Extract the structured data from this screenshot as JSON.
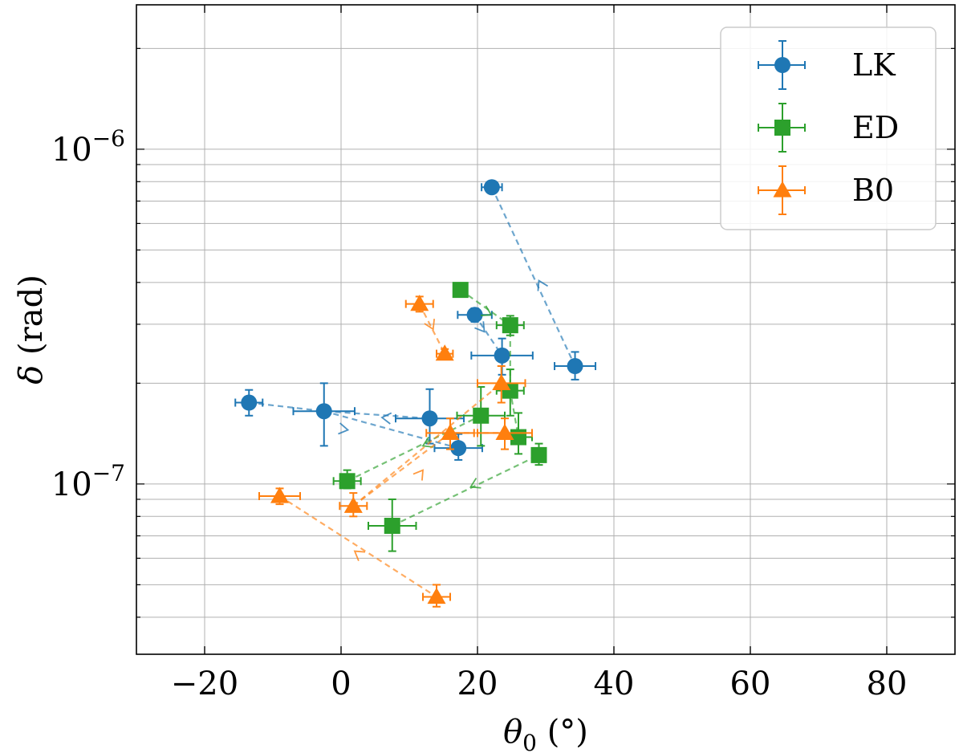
{
  "chart_data": {
    "type": "scatter",
    "title": "",
    "xlabel": {
      "base": "θ",
      "sub": "0",
      "unit": "(°)"
    },
    "ylabel": {
      "var": "δ",
      "unit": "(rad)"
    },
    "xlim": [
      -30,
      90
    ],
    "ylim": [
      3.1e-08,
      2.7e-06
    ],
    "yscale": "log",
    "grid": true,
    "legend_position": "top-right",
    "x_ticks": [
      -20,
      0,
      20,
      40,
      60,
      80
    ],
    "x_tick_labels": [
      "−20",
      "0",
      "20",
      "40",
      "60",
      "80"
    ],
    "y_tick_labels": [
      {
        "value": 1e-07,
        "base": "10",
        "exp": "−7"
      },
      {
        "value": 1e-06,
        "base": "10",
        "exp": "−6"
      }
    ],
    "series": [
      {
        "name": "LK",
        "color": "#1f77b4",
        "marker": "circle",
        "points": [
          {
            "x": 22.1,
            "y": 7.7e-07,
            "xerr": 1.5,
            "yerr": [
              1.5e-08,
              1.5e-08
            ]
          },
          {
            "x": 34.3,
            "y": 2.25e-07,
            "xerr": 3.0,
            "yerr": [
              2e-08,
              2.3e-08
            ]
          },
          {
            "x": 19.6,
            "y": 3.2e-07,
            "xerr": 2.5,
            "yerr": [
              1.5e-08,
              1.5e-08
            ]
          },
          {
            "x": 23.6,
            "y": 2.42e-07,
            "xerr": 4.5,
            "yerr": [
              3e-08,
              3e-08
            ]
          },
          {
            "x": -13.5,
            "y": 1.75e-07,
            "xerr": 2.0,
            "yerr": [
              1.5e-08,
              1.6e-08
            ]
          },
          {
            "x": -2.5,
            "y": 1.65e-07,
            "xerr": 4.5,
            "yerr": [
              3.5e-08,
              3.5e-08
            ]
          },
          {
            "x": 13.0,
            "y": 1.57e-07,
            "xerr": 5.0,
            "yerr": [
              2.5e-08,
              3.5e-08
            ]
          },
          {
            "x": 17.2,
            "y": 1.28e-07,
            "xerr": 3.5,
            "yerr": [
              1e-08,
              1.3e-08
            ]
          }
        ],
        "path": [
          [
            22.1,
            7.7e-07
          ],
          [
            34.3,
            2.25e-07
          ]
        ],
        "path2": [
          [
            -13.5,
            1.75e-07
          ],
          [
            -2.5,
            1.65e-07
          ],
          [
            13.0,
            1.57e-07
          ]
        ],
        "path3": [
          [
            -2.5,
            1.65e-07
          ],
          [
            17.2,
            1.28e-07
          ]
        ],
        "path4": [
          [
            19.6,
            3.2e-07
          ],
          [
            23.6,
            2.42e-07
          ]
        ],
        "arrows": [
          {
            "x": 29.0,
            "y": 4.05e-07,
            "to": [
              22.1,
              7.7e-07
            ]
          },
          {
            "x": 6.0,
            "y": 1.58e-07,
            "to": [
              -2.5,
              1.65e-07
            ]
          },
          {
            "x": 1.0,
            "y": 1.45e-07,
            "to": [
              17.2,
              1.28e-07
            ]
          },
          {
            "x": 21.0,
            "y": 2.85e-07,
            "to": [
              23.6,
              2.42e-07
            ]
          }
        ]
      },
      {
        "name": "ED",
        "color": "#2ca02c",
        "marker": "square",
        "points": [
          {
            "x": 17.5,
            "y": 3.8e-07,
            "xerr": 1.0,
            "yerr": [
              1.5e-08,
              1.5e-08
            ]
          },
          {
            "x": 24.8,
            "y": 2.98e-07,
            "xerr": 2.0,
            "yerr": [
              2e-08,
              2e-08
            ]
          },
          {
            "x": 24.8,
            "y": 1.9e-07,
            "xerr": 2.0,
            "yerr": [
              3e-08,
              3e-08
            ]
          },
          {
            "x": 20.5,
            "y": 1.6e-07,
            "xerr": 3.5,
            "yerr": [
              3e-08,
              3.5e-08
            ]
          },
          {
            "x": 26.0,
            "y": 1.38e-07,
            "xerr": 2.0,
            "yerr": [
              1.5e-08,
              2.5e-08
            ]
          },
          {
            "x": 29.0,
            "y": 1.22e-07,
            "xerr": 1.0,
            "yerr": [
              8e-09,
              1e-08
            ]
          },
          {
            "x": 0.9,
            "y": 1.02e-07,
            "xerr": 2.0,
            "yerr": [
              5e-09,
              8e-09
            ]
          },
          {
            "x": 7.5,
            "y": 7.5e-08,
            "xerr": 3.5,
            "yerr": [
              1.2e-08,
              1.5e-08
            ]
          }
        ],
        "path": [
          [
            17.5,
            3.8e-07
          ],
          [
            24.8,
            2.98e-07
          ],
          [
            24.8,
            1.9e-07
          ],
          [
            26.0,
            1.38e-07
          ]
        ],
        "path2": [
          [
            0.9,
            1.02e-07
          ],
          [
            20.5,
            1.6e-07
          ]
        ],
        "path3": [
          [
            7.5,
            7.5e-08
          ],
          [
            29.0,
            1.22e-07
          ]
        ],
        "arrows": [
          {
            "x": 12.0,
            "y": 1.3e-07,
            "to": [
              0.9,
              1.02e-07
            ]
          },
          {
            "x": 19.0,
            "y": 9.8e-08,
            "to": [
              7.5,
              7.5e-08
            ]
          },
          {
            "x": 22.0,
            "y": 3.2e-07,
            "to": [
              24.8,
              2.98e-07
            ]
          }
        ]
      },
      {
        "name": "B0",
        "color": "#ff7f0e",
        "marker": "triangle",
        "points": [
          {
            "x": 11.5,
            "y": 3.45e-07,
            "xerr": 2.0,
            "yerr": [
              1.8e-08,
              1.8e-08
            ]
          },
          {
            "x": 15.2,
            "y": 2.45e-07,
            "xerr": 1.2,
            "yerr": [
              8e-09,
              8e-09
            ]
          },
          {
            "x": 23.5,
            "y": 2e-07,
            "xerr": 3.5,
            "yerr": [
              2.5e-08,
              2.5e-08
            ]
          },
          {
            "x": 16.0,
            "y": 1.42e-07,
            "xerr": 3.5,
            "yerr": [
              1.5e-08,
              1.5e-08
            ]
          },
          {
            "x": 24.0,
            "y": 1.42e-07,
            "xerr": 4.0,
            "yerr": [
              1.5e-08,
              1.5e-08
            ]
          },
          {
            "x": -9.0,
            "y": 9.2e-08,
            "xerr": 3.0,
            "yerr": [
              5e-09,
              5e-09
            ]
          },
          {
            "x": 1.8,
            "y": 8.6e-08,
            "xerr": 2.0,
            "yerr": [
              6e-09,
              8e-09
            ]
          },
          {
            "x": 14.0,
            "y": 4.6e-08,
            "xerr": 2.0,
            "yerr": [
              3e-09,
              4e-09
            ]
          }
        ],
        "path": [
          [
            11.5,
            3.45e-07
          ],
          [
            15.2,
            2.45e-07
          ]
        ],
        "path2": [
          [
            -9.0,
            9.2e-08
          ],
          [
            14.0,
            4.6e-08
          ]
        ],
        "path3": [
          [
            1.8,
            8.6e-08
          ],
          [
            23.5,
            2e-07
          ]
        ],
        "path4": [
          [
            1.8,
            8.6e-08
          ],
          [
            16.0,
            1.42e-07
          ],
          [
            24.0,
            1.42e-07
          ]
        ],
        "arrows": [
          {
            "x": 13.5,
            "y": 2.9e-07,
            "to": [
              15.2,
              2.45e-07
            ]
          },
          {
            "x": 2.0,
            "y": 6.3e-08,
            "to": [
              -9.0,
              9.2e-08
            ]
          },
          {
            "x": 12.0,
            "y": 1.1e-07,
            "to": [
              16.0,
              1.42e-07
            ]
          }
        ]
      }
    ]
  }
}
